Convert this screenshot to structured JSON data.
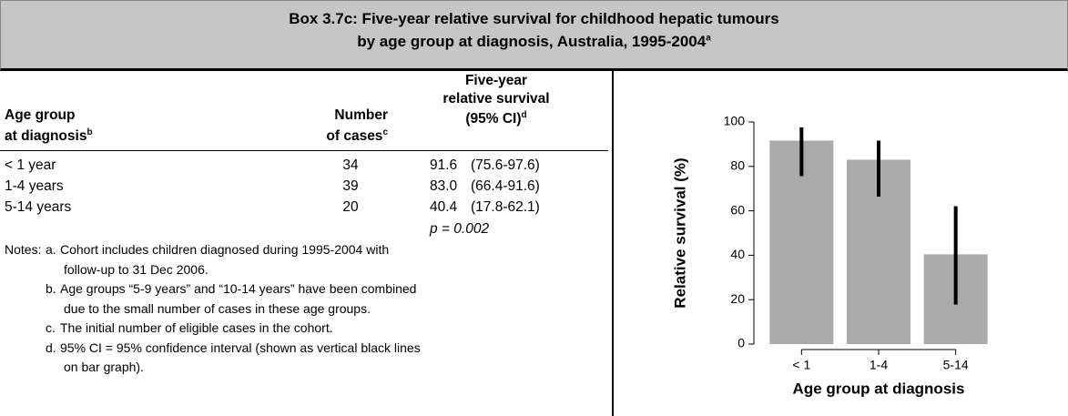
{
  "header": {
    "title_lines": [
      "Box 3.7c: Five-year relative survival for childhood hepatic tumours",
      "by age group at diagnosis, Australia, 1995-2004"
    ],
    "title_sup": "a"
  },
  "table": {
    "columns": [
      {
        "lines": [
          "Age group",
          "at diagnosis"
        ],
        "sup": "b"
      },
      {
        "lines": [
          "Number",
          "of cases"
        ],
        "sup": "c"
      },
      {
        "lines": [
          "Five-year",
          "relative survival",
          "(95% CI)"
        ],
        "sup": "d"
      }
    ],
    "rows": [
      [
        "< 1 year",
        34,
        "91.6",
        "(75.6-97.6)"
      ],
      [
        "1-4 years",
        39,
        "83.0",
        "(66.4-91.6)"
      ],
      [
        "5-14 years",
        20,
        "40.4",
        "(17.8-62.1)"
      ]
    ],
    "p_value": "p = 0.002"
  },
  "notes": {
    "label": "Notes:",
    "items": [
      {
        "letter": "a.",
        "lines": [
          "Cohort includes children diagnosed during 1995-2004 with",
          "follow-up to 31 Dec 2006."
        ]
      },
      {
        "letter": "b.",
        "lines": [
          "Age groups “5-9 years” and “10-14 years” have been combined",
          "due to the small number of cases in these age groups."
        ]
      },
      {
        "letter": "c.",
        "lines": [
          "The initial number of eligible cases in the cohort."
        ]
      },
      {
        "letter": "d.",
        "lines": [
          " 95% CI = 95% confidence interval (shown as vertical black lines",
          "on bar graph)."
        ]
      }
    ]
  },
  "chart_data": {
    "type": "bar",
    "y_label": "Relative survival (%)",
    "x_label": "Age group at diagnosis",
    "categories": [
      "< 1",
      "1-4",
      "5-14"
    ],
    "values": [
      91.6,
      83.0,
      40.4
    ],
    "ci_low": [
      75.6,
      66.4,
      17.8
    ],
    "ci_high": [
      97.6,
      91.6,
      62.1
    ],
    "color": "#aaaaaa",
    "error_color": "#000000",
    "ylim": [
      0,
      100
    ],
    "yticks": [
      0,
      20,
      40,
      60,
      80,
      100
    ]
  }
}
